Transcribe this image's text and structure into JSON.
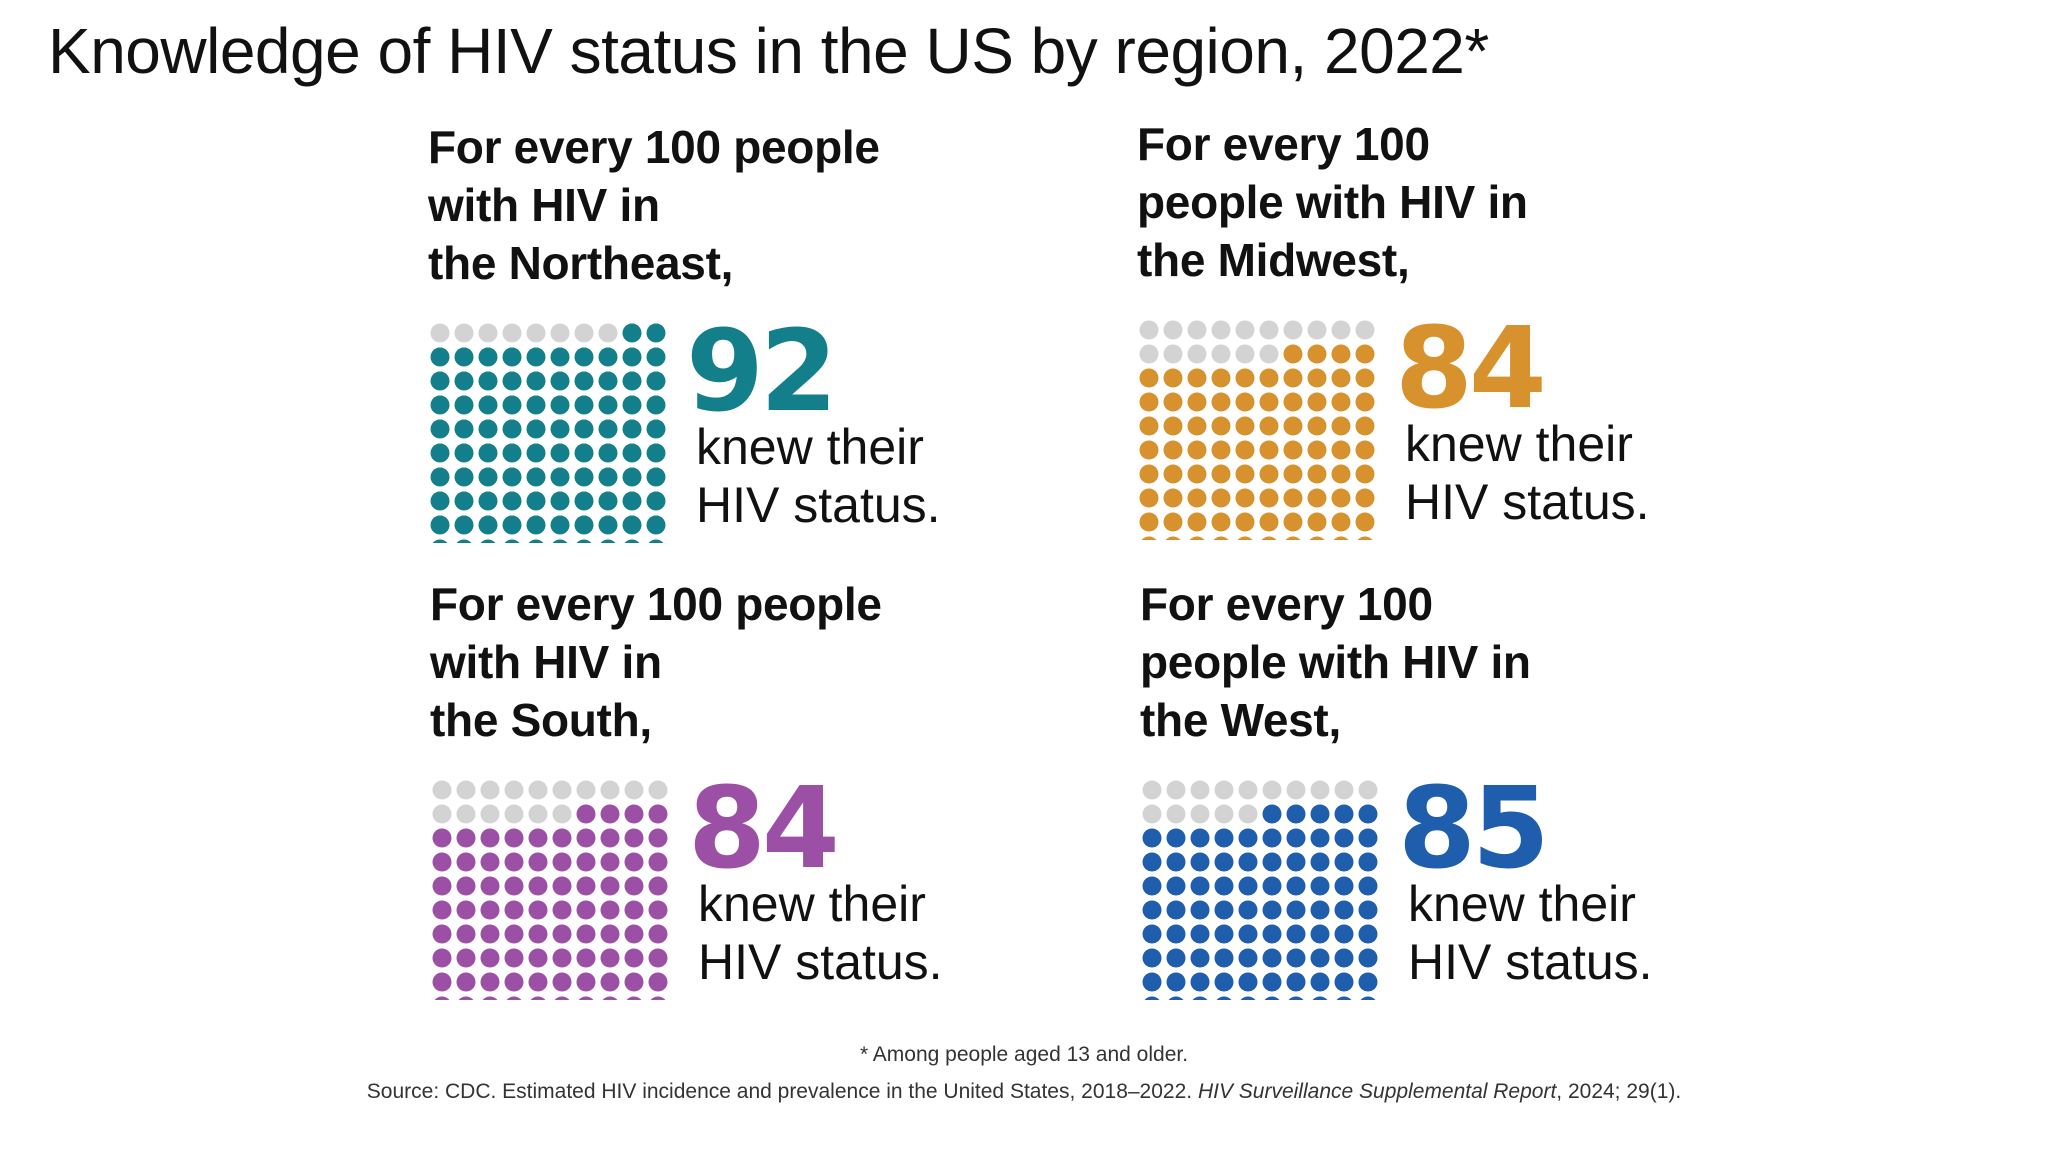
{
  "title": "Knowledge of HIV status in the US by region, 2022*",
  "chart_data": [
    {
      "type": "waffle",
      "region": "Northeast",
      "heading_lines": [
        "For every 100 people",
        "with HIV in",
        "the Northeast,"
      ],
      "value": 92,
      "total": 100,
      "value_label": "92",
      "caption_lines": [
        "knew their",
        "HIV status."
      ],
      "color": "#137F8B",
      "empty_color": "#D3D3D3"
    },
    {
      "type": "waffle",
      "region": "Midwest",
      "heading_lines": [
        "For every 100",
        "people with HIV in",
        "the Midwest,"
      ],
      "value": 84,
      "total": 100,
      "value_label": "84",
      "caption_lines": [
        "knew their",
        "HIV status."
      ],
      "color": "#D8922D",
      "empty_color": "#D3D3D3"
    },
    {
      "type": "waffle",
      "region": "South",
      "heading_lines": [
        "For every 100 people",
        "with HIV in",
        "the South,"
      ],
      "value": 84,
      "total": 100,
      "value_label": "84",
      "caption_lines": [
        "knew their",
        "HIV status."
      ],
      "color": "#9B4FA5",
      "empty_color": "#D3D3D3"
    },
    {
      "type": "waffle",
      "region": "West",
      "heading_lines": [
        "For every 100",
        "people with HIV in",
        "the West,"
      ],
      "value": 85,
      "total": 100,
      "value_label": "85",
      "caption_lines": [
        "knew their",
        "HIV status."
      ],
      "color": "#1E5EAD",
      "empty_color": "#D3D3D3"
    }
  ],
  "footnote": "* Among people aged 13 and older.",
  "source": {
    "prefix": "Source: CDC. Estimated HIV incidence and prevalence in the United States, 2018–2022. ",
    "report_italic": "HIV Surveillance Supplemental Report",
    "suffix": ", 2024; 29(1)."
  }
}
